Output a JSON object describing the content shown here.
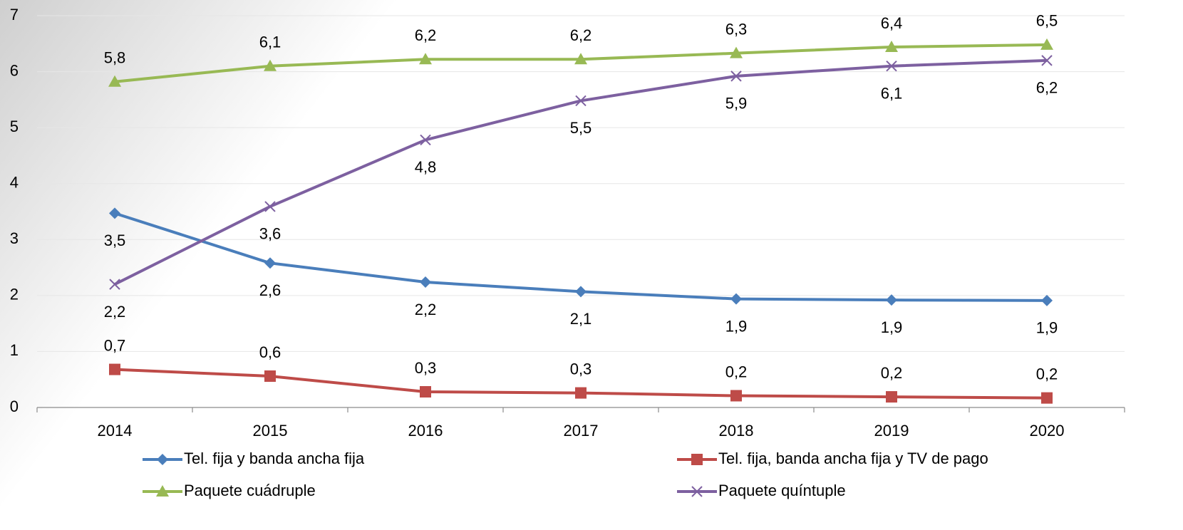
{
  "chart_data": {
    "type": "line",
    "categories": [
      "2014",
      "2015",
      "2016",
      "2017",
      "2018",
      "2019",
      "2020"
    ],
    "ylim": [
      0,
      7
    ],
    "yticks": [
      0,
      1,
      2,
      3,
      4,
      5,
      6,
      7
    ],
    "grid": true,
    "series": [
      {
        "name": "Tel. fija y banda ancha fija",
        "color": "#4a7ebb",
        "marker": "diamond",
        "values": [
          3.47,
          2.58,
          2.24,
          2.07,
          1.94,
          1.92,
          1.91
        ],
        "value_labels": [
          "3,5",
          "2,6",
          "2,2",
          "2,1",
          "1,9",
          "1,9",
          "1,9"
        ]
      },
      {
        "name": "Tel. fija, banda ancha fija y TV de pago",
        "color": "#be4b48",
        "marker": "square",
        "values": [
          0.68,
          0.56,
          0.28,
          0.26,
          0.21,
          0.19,
          0.17
        ],
        "value_labels": [
          "0,7",
          "0,6",
          "0,3",
          "0,3",
          "0,2",
          "0,2",
          "0,2"
        ]
      },
      {
        "name": "Paquete cuádruple",
        "color": "#98b954",
        "marker": "triangle",
        "values": [
          5.82,
          6.1,
          6.22,
          6.22,
          6.33,
          6.44,
          6.48
        ],
        "value_labels": [
          "5,8",
          "6,1",
          "6,2",
          "6,2",
          "6,3",
          "6,4",
          "6,5"
        ]
      },
      {
        "name": "Paquete quíntuple",
        "color": "#7d60a0",
        "marker": "x",
        "values": [
          2.2,
          3.59,
          4.78,
          5.48,
          5.92,
          6.1,
          6.2
        ],
        "value_labels": [
          "2,2",
          "3,6",
          "4,8",
          "5,5",
          "5,9",
          "6,1",
          "6,2"
        ]
      }
    ]
  }
}
